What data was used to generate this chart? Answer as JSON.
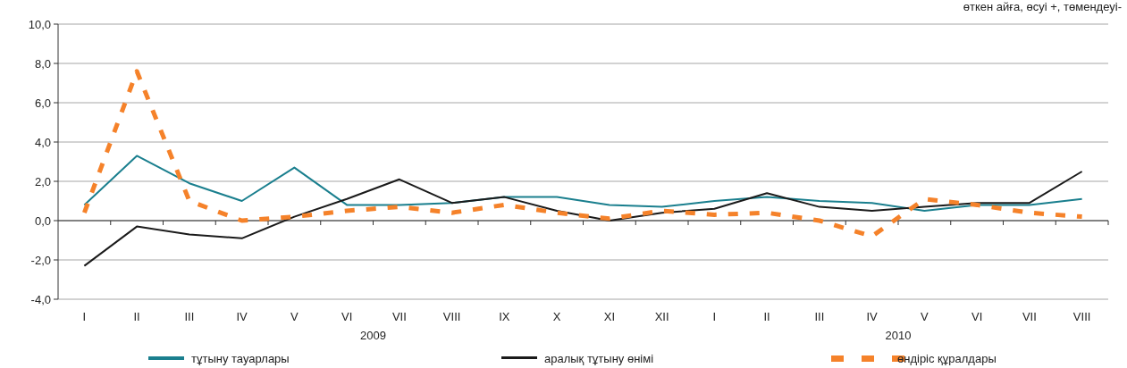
{
  "chart_data": {
    "type": "line",
    "subtitle": "өткен айға, өсуі +, төмендеуі-",
    "categories": [
      "I",
      "II",
      "III",
      "IV",
      "V",
      "VI",
      "VII",
      "VIII",
      "IX",
      "X",
      "XI",
      "XII",
      "I",
      "II",
      "III",
      "IV",
      "V",
      "VI",
      "VII",
      "VIII"
    ],
    "series": [
      {
        "name": "тұтыну тауарлары",
        "color": "#1a7f8e",
        "line_style": "solid",
        "values": [
          0.8,
          3.3,
          1.9,
          1.0,
          2.7,
          0.8,
          0.8,
          0.9,
          1.2,
          1.2,
          0.8,
          0.7,
          1.0,
          1.2,
          1.0,
          0.9,
          0.5,
          0.8,
          0.8,
          1.1
        ]
      },
      {
        "name": "аралық тұтыну өнімі",
        "color": "#1a1a1a",
        "line_style": "solid",
        "values": [
          -2.3,
          -0.3,
          -0.7,
          -0.9,
          0.2,
          1.1,
          2.1,
          0.9,
          1.2,
          0.5,
          0.0,
          0.4,
          0.6,
          1.4,
          0.7,
          0.5,
          0.7,
          0.9,
          0.9,
          2.5
        ]
      },
      {
        "name": "өндіріс құралдары",
        "color": "#f5822a",
        "line_style": "dashed",
        "values": [
          0.4,
          7.6,
          1.0,
          0.0,
          0.2,
          0.5,
          0.7,
          0.4,
          0.8,
          0.4,
          0.1,
          0.5,
          0.3,
          0.4,
          0.0,
          -0.8,
          1.1,
          0.8,
          0.4,
          0.2
        ]
      }
    ],
    "annotations": [
      "2009",
      "2010"
    ],
    "ylim": [
      -4,
      10
    ],
    "yticks": [
      {
        "value": -4,
        "label": "-4,0"
      },
      {
        "value": -2,
        "label": "-2,0"
      },
      {
        "value": 0,
        "label": "0,0"
      },
      {
        "value": 2,
        "label": "2,0"
      },
      {
        "value": 4,
        "label": "4,0"
      },
      {
        "value": 6,
        "label": "6,0"
      },
      {
        "value": 8,
        "label": "8,0"
      },
      {
        "value": 10,
        "label": "10,0"
      }
    ],
    "grid": "y",
    "legend": "bottom",
    "marker": "none"
  }
}
